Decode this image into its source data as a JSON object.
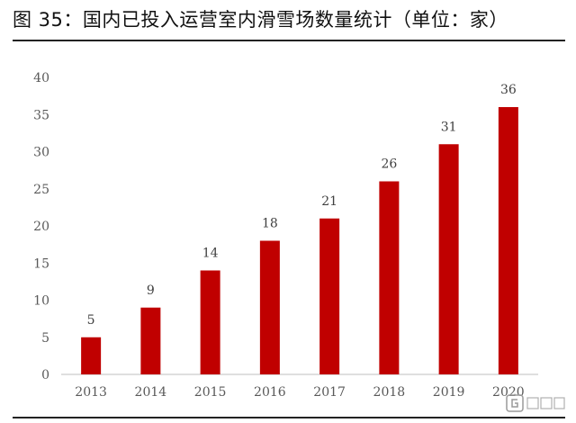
{
  "title": "图 35：国内已投入运营室内滑雪场数量统计（单位：家）",
  "colors": {
    "bar": "#C00000",
    "axis": "#BFBFBF",
    "tick_text": "#595959"
  },
  "chart_data": {
    "type": "bar",
    "categories": [
      "2013",
      "2014",
      "2015",
      "2016",
      "2017",
      "2018",
      "2019",
      "2020"
    ],
    "values": [
      5,
      9,
      14,
      18,
      21,
      26,
      31,
      36
    ],
    "ylim": [
      0,
      40
    ],
    "yticks": [
      0,
      5,
      10,
      15,
      20,
      25,
      30,
      35,
      40
    ],
    "data_labels": true,
    "grid": false,
    "legend": "none"
  }
}
